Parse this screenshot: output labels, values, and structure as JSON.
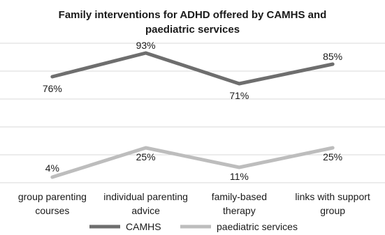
{
  "chart_data": {
    "type": "line",
    "title": "Family interventions for ADHD offered by CAMHS and paediatric services",
    "title_lines": [
      "Family interventions for ADHD offered by CAMHS and",
      "paediatric services"
    ],
    "categories": [
      "group parenting courses",
      "individual parenting advice",
      "family-based therapy",
      "links with support group"
    ],
    "category_lines": [
      [
        "group parenting",
        "courses"
      ],
      [
        "individual parenting",
        "advice"
      ],
      [
        "family-based",
        "therapy"
      ],
      [
        "links with support",
        "group"
      ]
    ],
    "series": [
      {
        "name": "CAMHS",
        "values": [
          76,
          93,
          71,
          85
        ],
        "labels": [
          "76%",
          "93%",
          "71%",
          "85%"
        ],
        "color": "#6e6e6e"
      },
      {
        "name": "paediatric services",
        "values": [
          4,
          25,
          11,
          25
        ],
        "labels": [
          "4%",
          "25%",
          "11%",
          "25%"
        ],
        "color": "#bdbdbd"
      }
    ],
    "xlabel": "",
    "ylabel": "",
    "ylim": [
      0,
      100
    ],
    "grid": true,
    "legend": "bottom"
  }
}
